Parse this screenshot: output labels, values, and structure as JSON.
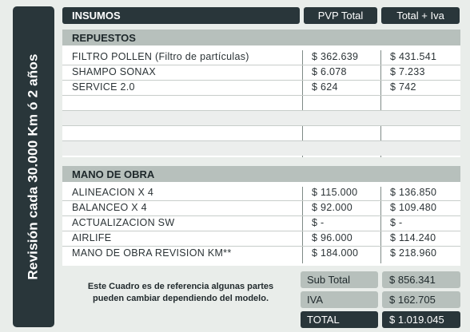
{
  "side_label": "Revisión  cada 30.000 Km ó 2 años",
  "header": {
    "insumos": "INSUMOS",
    "pvp_total": "PVP Total",
    "total_iva": "Total + Iva"
  },
  "repuestos": {
    "title": "REPUESTOS",
    "rows": [
      {
        "name": "FILTRO POLLEN (Filtro de partículas)",
        "pvp": "$ 362.639",
        "total": "$ 431.541"
      },
      {
        "name": "SHAMPO SONAX",
        "pvp": "$ 6.078",
        "total": "$ 7.233"
      },
      {
        "name": "SERVICE 2.0",
        "pvp": "$ 624",
        "total": "$ 742"
      }
    ]
  },
  "mano_de_obra": {
    "title": "MANO DE OBRA",
    "rows": [
      {
        "name": "ALINEACION X 4",
        "pvp": "$ 115.000",
        "total": "$ 136.850"
      },
      {
        "name": "BALANCEO X 4",
        "pvp": "$ 92.000",
        "total": "$ 109.480"
      },
      {
        "name": "ACTUALIZACION SW",
        "pvp": "$ -",
        "total": "$ -"
      },
      {
        "name": "AIRLIFE",
        "pvp": "$ 96.000",
        "total": "$ 114.240"
      },
      {
        "name": "MANO DE OBRA REVISION KM**",
        "pvp": "$ 184.000",
        "total": "$ 218.960"
      }
    ]
  },
  "note": "Este Cuadro es de referencia algunas partes pueden cambiar dependiendo del modelo.",
  "summary": {
    "subtotal_label": "Sub Total",
    "subtotal_value": "$ 856.341",
    "iva_label": "IVA",
    "iva_value": "$ 162.705",
    "total_label": "TOTAL",
    "total_value": "$ 1.019.045"
  },
  "colors": {
    "dark": "#29363a",
    "section": "#b7c0bc",
    "background": "#e9edea"
  }
}
